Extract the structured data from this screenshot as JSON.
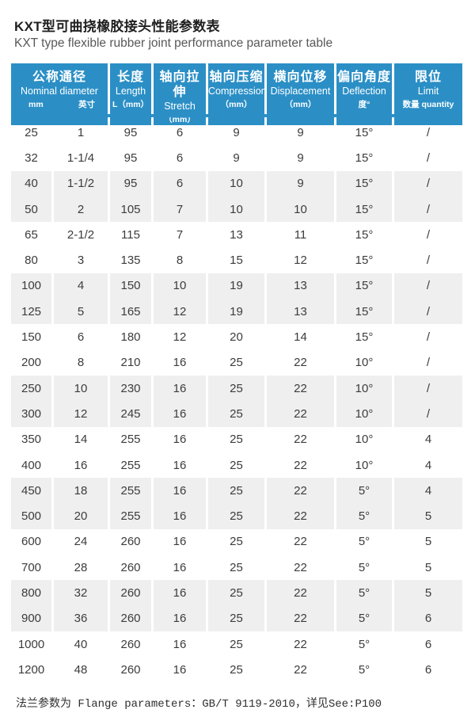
{
  "page": {
    "title_zh": "KXT型可曲挠橡胶接头性能参数表",
    "title_en": "KXT type flexible rubber joint performance parameter table"
  },
  "colors": {
    "header_bg": "#2b8fc6",
    "stripe": "#efefef"
  },
  "table": {
    "header": {
      "nominal": {
        "zh": "公称通径",
        "en": "Nominal diameter",
        "sub_left": "mm",
        "sub_right": "英寸"
      },
      "cols": [
        {
          "zh": "长度",
          "en": "Length",
          "sub": "L（mm）"
        },
        {
          "zh": "轴向拉伸",
          "en": "Stretch",
          "sub": "（mm）"
        },
        {
          "zh": "轴向压缩",
          "en": "Compression",
          "sub": "（mm）"
        },
        {
          "zh": "横向位移",
          "en": "Displacement",
          "sub": "（mm）"
        },
        {
          "zh": "偏向角度",
          "en": "Deflection",
          "sub": "度°"
        },
        {
          "zh": "限位",
          "en": "Limit",
          "sub": "数量 quantity"
        }
      ]
    },
    "rows": [
      [
        "25",
        "1",
        "95",
        "6",
        "9",
        "9",
        "15°",
        "/"
      ],
      [
        "32",
        "1-1/4",
        "95",
        "6",
        "9",
        "9",
        "15°",
        "/"
      ],
      [
        "40",
        "1-1/2",
        "95",
        "6",
        "10",
        "9",
        "15°",
        "/"
      ],
      [
        "50",
        "2",
        "105",
        "7",
        "10",
        "10",
        "15°",
        "/"
      ],
      [
        "65",
        "2-1/2",
        "115",
        "7",
        "13",
        "11",
        "15°",
        "/"
      ],
      [
        "80",
        "3",
        "135",
        "8",
        "15",
        "12",
        "15°",
        "/"
      ],
      [
        "100",
        "4",
        "150",
        "10",
        "19",
        "13",
        "15°",
        "/"
      ],
      [
        "125",
        "5",
        "165",
        "12",
        "19",
        "13",
        "15°",
        "/"
      ],
      [
        "150",
        "6",
        "180",
        "12",
        "20",
        "14",
        "15°",
        "/"
      ],
      [
        "200",
        "8",
        "210",
        "16",
        "25",
        "22",
        "10°",
        "/"
      ],
      [
        "250",
        "10",
        "230",
        "16",
        "25",
        "22",
        "10°",
        "/"
      ],
      [
        "300",
        "12",
        "245",
        "16",
        "25",
        "22",
        "10°",
        "/"
      ],
      [
        "350",
        "14",
        "255",
        "16",
        "25",
        "22",
        "10°",
        "4"
      ],
      [
        "400",
        "16",
        "255",
        "16",
        "25",
        "22",
        "10°",
        "4"
      ],
      [
        "450",
        "18",
        "255",
        "16",
        "25",
        "22",
        "5°",
        "4"
      ],
      [
        "500",
        "20",
        "255",
        "16",
        "25",
        "22",
        "5°",
        "5"
      ],
      [
        "600",
        "24",
        "260",
        "16",
        "25",
        "22",
        "5°",
        "5"
      ],
      [
        "700",
        "28",
        "260",
        "16",
        "25",
        "22",
        "5°",
        "5"
      ],
      [
        "800",
        "32",
        "260",
        "16",
        "25",
        "22",
        "5°",
        "5"
      ],
      [
        "900",
        "36",
        "260",
        "16",
        "25",
        "22",
        "5°",
        "6"
      ],
      [
        "1000",
        "40",
        "260",
        "16",
        "25",
        "22",
        "5°",
        "6"
      ],
      [
        "1200",
        "48",
        "260",
        "16",
        "25",
        "22",
        "5°",
        "6"
      ]
    ]
  },
  "footer": {
    "note": "法兰参数为 Flange parameters：GB/T 9119-2010，详见See:P100"
  }
}
